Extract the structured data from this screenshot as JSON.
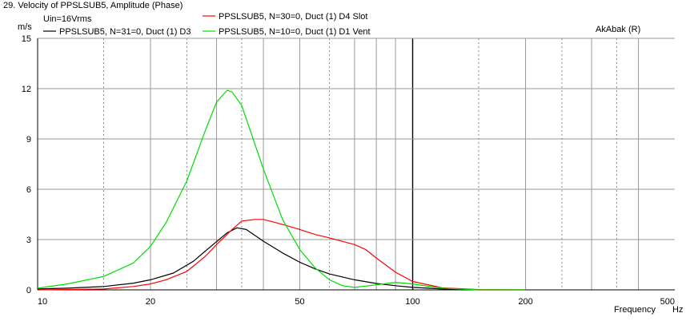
{
  "chart_data": {
    "type": "line",
    "title": "29. Velocity of PPSLSUB5, Amplitude (Phase)",
    "note": "Uin=16Vrms",
    "brand": "AkAbak (R)",
    "ylabel": "m/s",
    "xlabel": "Frequency",
    "xunit": "Hz",
    "xscale": "log",
    "xlim": [
      10,
      500
    ],
    "ylim": [
      0,
      15
    ],
    "y_ticks": [
      0,
      3,
      6,
      9,
      12,
      15
    ],
    "x_tick_labels": [
      {
        "value": 10,
        "label": "10"
      },
      {
        "value": 20,
        "label": "20"
      },
      {
        "value": 50,
        "label": "50"
      },
      {
        "value": 100,
        "label": "100"
      },
      {
        "value": 200,
        "label": "200"
      },
      {
        "value": 500,
        "label": "500"
      }
    ],
    "x_grid_dotted": [
      15,
      25,
      35,
      60,
      150,
      250,
      350
    ],
    "x_grid_solid": [
      20,
      30,
      40,
      50,
      70,
      80,
      90,
      200,
      300,
      400
    ],
    "x_grid_bold": [
      100
    ],
    "grid": true,
    "series": [
      {
        "name": "PPSLSUB5, N=31=0, Duct (1) D3",
        "color": "#000000",
        "x": [
          10,
          12,
          15,
          18,
          20,
          23,
          26,
          29,
          32,
          34,
          36,
          40,
          45,
          50,
          55,
          60,
          70,
          80,
          90,
          100,
          120,
          150,
          200
        ],
        "y": [
          0.05,
          0.1,
          0.2,
          0.4,
          0.6,
          1.0,
          1.7,
          2.6,
          3.4,
          3.7,
          3.6,
          2.9,
          2.2,
          1.65,
          1.25,
          0.95,
          0.6,
          0.38,
          0.25,
          0.15,
          0.05,
          0.0,
          0.0
        ]
      },
      {
        "name": "PPSLSUB5, N=30=0, Duct (1) D4 Slot",
        "color": "#ff0000",
        "x": [
          10,
          15,
          18,
          20,
          22,
          25,
          28,
          30,
          33,
          35,
          38,
          40,
          45,
          50,
          55,
          60,
          70,
          75,
          80,
          90,
          100,
          120,
          150,
          200
        ],
        "y": [
          0.0,
          0.05,
          0.2,
          0.35,
          0.6,
          1.1,
          2.0,
          2.7,
          3.6,
          4.1,
          4.2,
          4.2,
          3.9,
          3.6,
          3.3,
          3.1,
          2.7,
          2.4,
          1.9,
          1.05,
          0.5,
          0.12,
          0.02,
          0.0
        ]
      },
      {
        "name": "PPSLSUB5, N=10=0, Duct (1) D1 Vent",
        "color": "#00dd00",
        "x": [
          10,
          12,
          15,
          18,
          20,
          22,
          25,
          28,
          30,
          32,
          33,
          35,
          40,
          45,
          50,
          55,
          60,
          65,
          70,
          80,
          90,
          100,
          120,
          150,
          200
        ],
        "y": [
          0.1,
          0.35,
          0.8,
          1.6,
          2.6,
          4.0,
          6.5,
          9.5,
          11.2,
          11.9,
          11.8,
          11.0,
          7.2,
          4.2,
          2.4,
          1.3,
          0.6,
          0.25,
          0.15,
          0.3,
          0.45,
          0.35,
          0.1,
          0.0,
          0.0
        ]
      }
    ]
  }
}
